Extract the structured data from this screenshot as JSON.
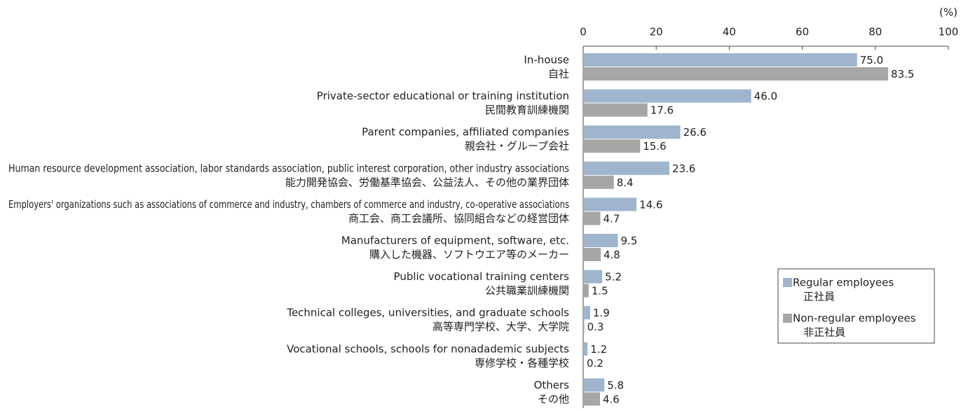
{
  "chart_data": {
    "type": "bar",
    "orientation": "horizontal",
    "unit_label": "(%)",
    "categories": [
      "In-house",
      "Private-sector educational or training institution",
      "Parent companies, affiliated companies",
      "Human resource development association, labor standards association, public interest corporation, other industry associations",
      "Employers' organizations such as associations of commerce and industry, chambers of commerce and industry, co-operative associations",
      "Manufacturers of equipment, software, etc.",
      "Public vocational training centers",
      "Technical colleges, universities, and graduate schools",
      "Vocational schools, schools for nonadademic subjects",
      "Others"
    ],
    "categories_ja": [
      "自社",
      "民間教育訓練機関",
      "親会社・グループ会社",
      "能力開発協会、労働基準協会、公益法人、その他の業界団体",
      "商工会、商工会議所、協同組合などの経営団体",
      "購入した機器、ソフトウエア等のメーカー",
      "公共職業訓練機関",
      "高等専門学校、大学、大学院",
      "専修学校・各種学校",
      "その他"
    ],
    "series": [
      {
        "name": "Regular employees",
        "name_ja": "正社員",
        "color": "#9fb4cd",
        "values": [
          75.0,
          46.0,
          26.6,
          23.6,
          14.6,
          9.5,
          5.2,
          1.9,
          1.2,
          5.8
        ],
        "value_labels": [
          "75.0",
          "46.0",
          "26.6",
          "23.6",
          "14.6",
          "9.5",
          "5.2",
          "1.9",
          "1.2",
          "5.8"
        ]
      },
      {
        "name": "Non-regular employees",
        "name_ja": "非正社員",
        "color": "#a6a6a6",
        "values": [
          83.5,
          17.6,
          15.6,
          8.4,
          4.7,
          4.8,
          1.5,
          0.3,
          0.2,
          4.6
        ],
        "value_labels": [
          "83.5",
          "17.6",
          "15.6",
          "8.4",
          "4.7",
          "4.8",
          "1.5",
          "0.3",
          "0.2",
          "4.6"
        ]
      }
    ],
    "xlim": [
      0,
      100
    ],
    "xticks": [
      0,
      20,
      40,
      60,
      80,
      100
    ],
    "legend": "lower-right"
  }
}
